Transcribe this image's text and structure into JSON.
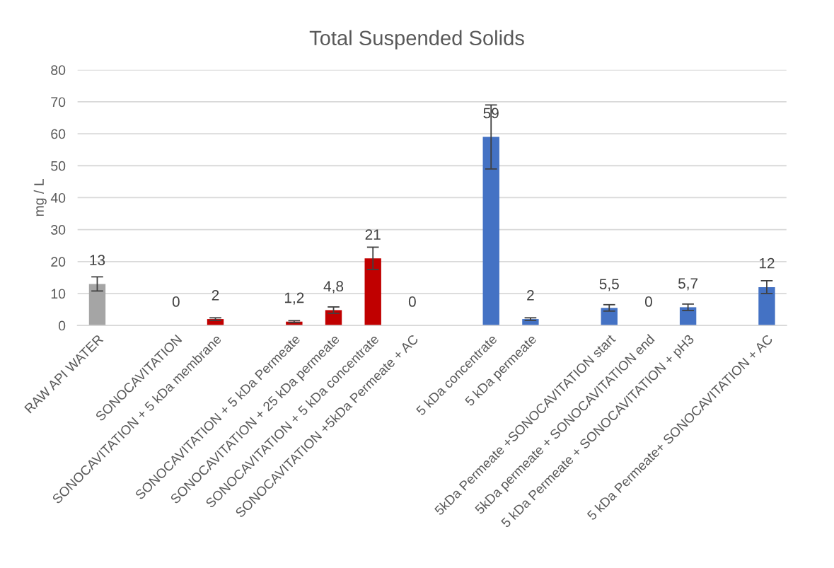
{
  "chart_data": {
    "type": "bar",
    "title": "Total Suspended Solids",
    "ylabel": "mg / L",
    "categories": [
      "RAW API WATER",
      null,
      "SONOCAVITATION",
      "SONOCAVITATION + 5 kDa membrane",
      null,
      "SONOCAVITATION + 5 kDa Permeate",
      "SONOCAVITATION + 25 kDa permeate",
      "SONOCAVITATION + 5 kDa concentrate",
      "SONOCAVITATION +5kDa Permeate + AC",
      null,
      "5 kDa concentrate",
      "5 kDa permeate",
      null,
      "5kDa Permeate +SONOCAVITATION start",
      "5kDa permeate + SONOCAVITATION end",
      "5 kDa Permeate + SONOCAVITATION + pH3",
      null,
      "5 kDa Permeate+ SONOCAVITATION + AC"
    ],
    "values": [
      13,
      null,
      0,
      2,
      null,
      1.2,
      4.8,
      21,
      0,
      null,
      59,
      2,
      null,
      5.5,
      0,
      5.7,
      null,
      12
    ],
    "errors": [
      2.2,
      null,
      null,
      0.4,
      null,
      0.3,
      1,
      3.5,
      null,
      null,
      10,
      0.4,
      null,
      1,
      null,
      1,
      null,
      2
    ],
    "value_labels": [
      "13",
      null,
      "0",
      "2",
      null,
      "1,2",
      "4,8",
      "21",
      "0",
      null,
      "59",
      "2",
      null,
      "5,5",
      "0",
      "5,7",
      null,
      "12"
    ],
    "colors": [
      "#a5a5a5",
      null,
      "#a5a5a5",
      "#c00000",
      null,
      "#c00000",
      "#c00000",
      "#c00000",
      "#a5a5a5",
      null,
      "#4472c4",
      "#4472c4",
      null,
      "#4472c4",
      "#a5a5a5",
      "#4472c4",
      null,
      "#4472c4"
    ],
    "ylim": [
      0,
      80
    ],
    "yticks": [
      0,
      10,
      20,
      30,
      40,
      50,
      60,
      70,
      80
    ],
    "grid": "y",
    "legend": false
  }
}
